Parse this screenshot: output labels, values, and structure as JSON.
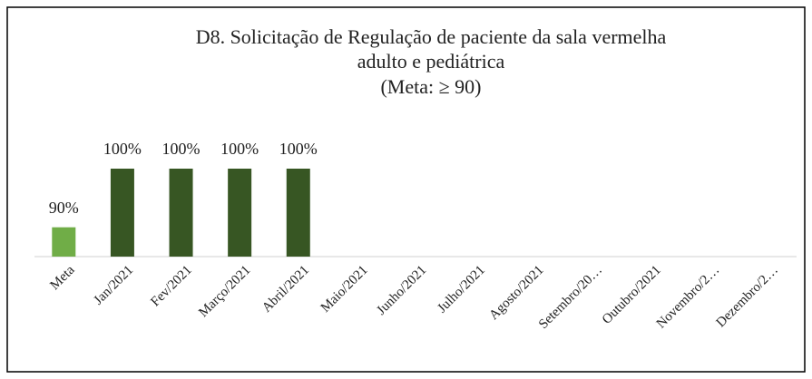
{
  "chart_data": {
    "type": "bar",
    "title": [
      "D8. Solicitação de Regulação de paciente da sala vermelha",
      "adulto e pediátrica",
      "(Meta: ≥ 90)"
    ],
    "categories": [
      "Meta",
      "Jan/2021",
      "Fev/2021",
      "Março/2021",
      "Abril/2021",
      "Maio/2021",
      "Junho/2021",
      "Julho/2021",
      "Agosto/2021",
      "Setembro/20…",
      "Outubro/2021",
      "Novembro/2…",
      "Dezembro/2…"
    ],
    "values": [
      90,
      100,
      100,
      100,
      100,
      null,
      null,
      null,
      null,
      null,
      null,
      null,
      null
    ],
    "value_labels": [
      "90%",
      "100%",
      "100%",
      "100%",
      "100%",
      null,
      null,
      null,
      null,
      null,
      null,
      null,
      null
    ],
    "colors": [
      "#70ad47",
      "#375623",
      "#375623",
      "#375623",
      "#375623",
      "#375623",
      "#375623",
      "#375623",
      "#375623",
      "#375623",
      "#375623",
      "#375623",
      "#375623"
    ],
    "ylim": [
      85,
      100
    ]
  }
}
